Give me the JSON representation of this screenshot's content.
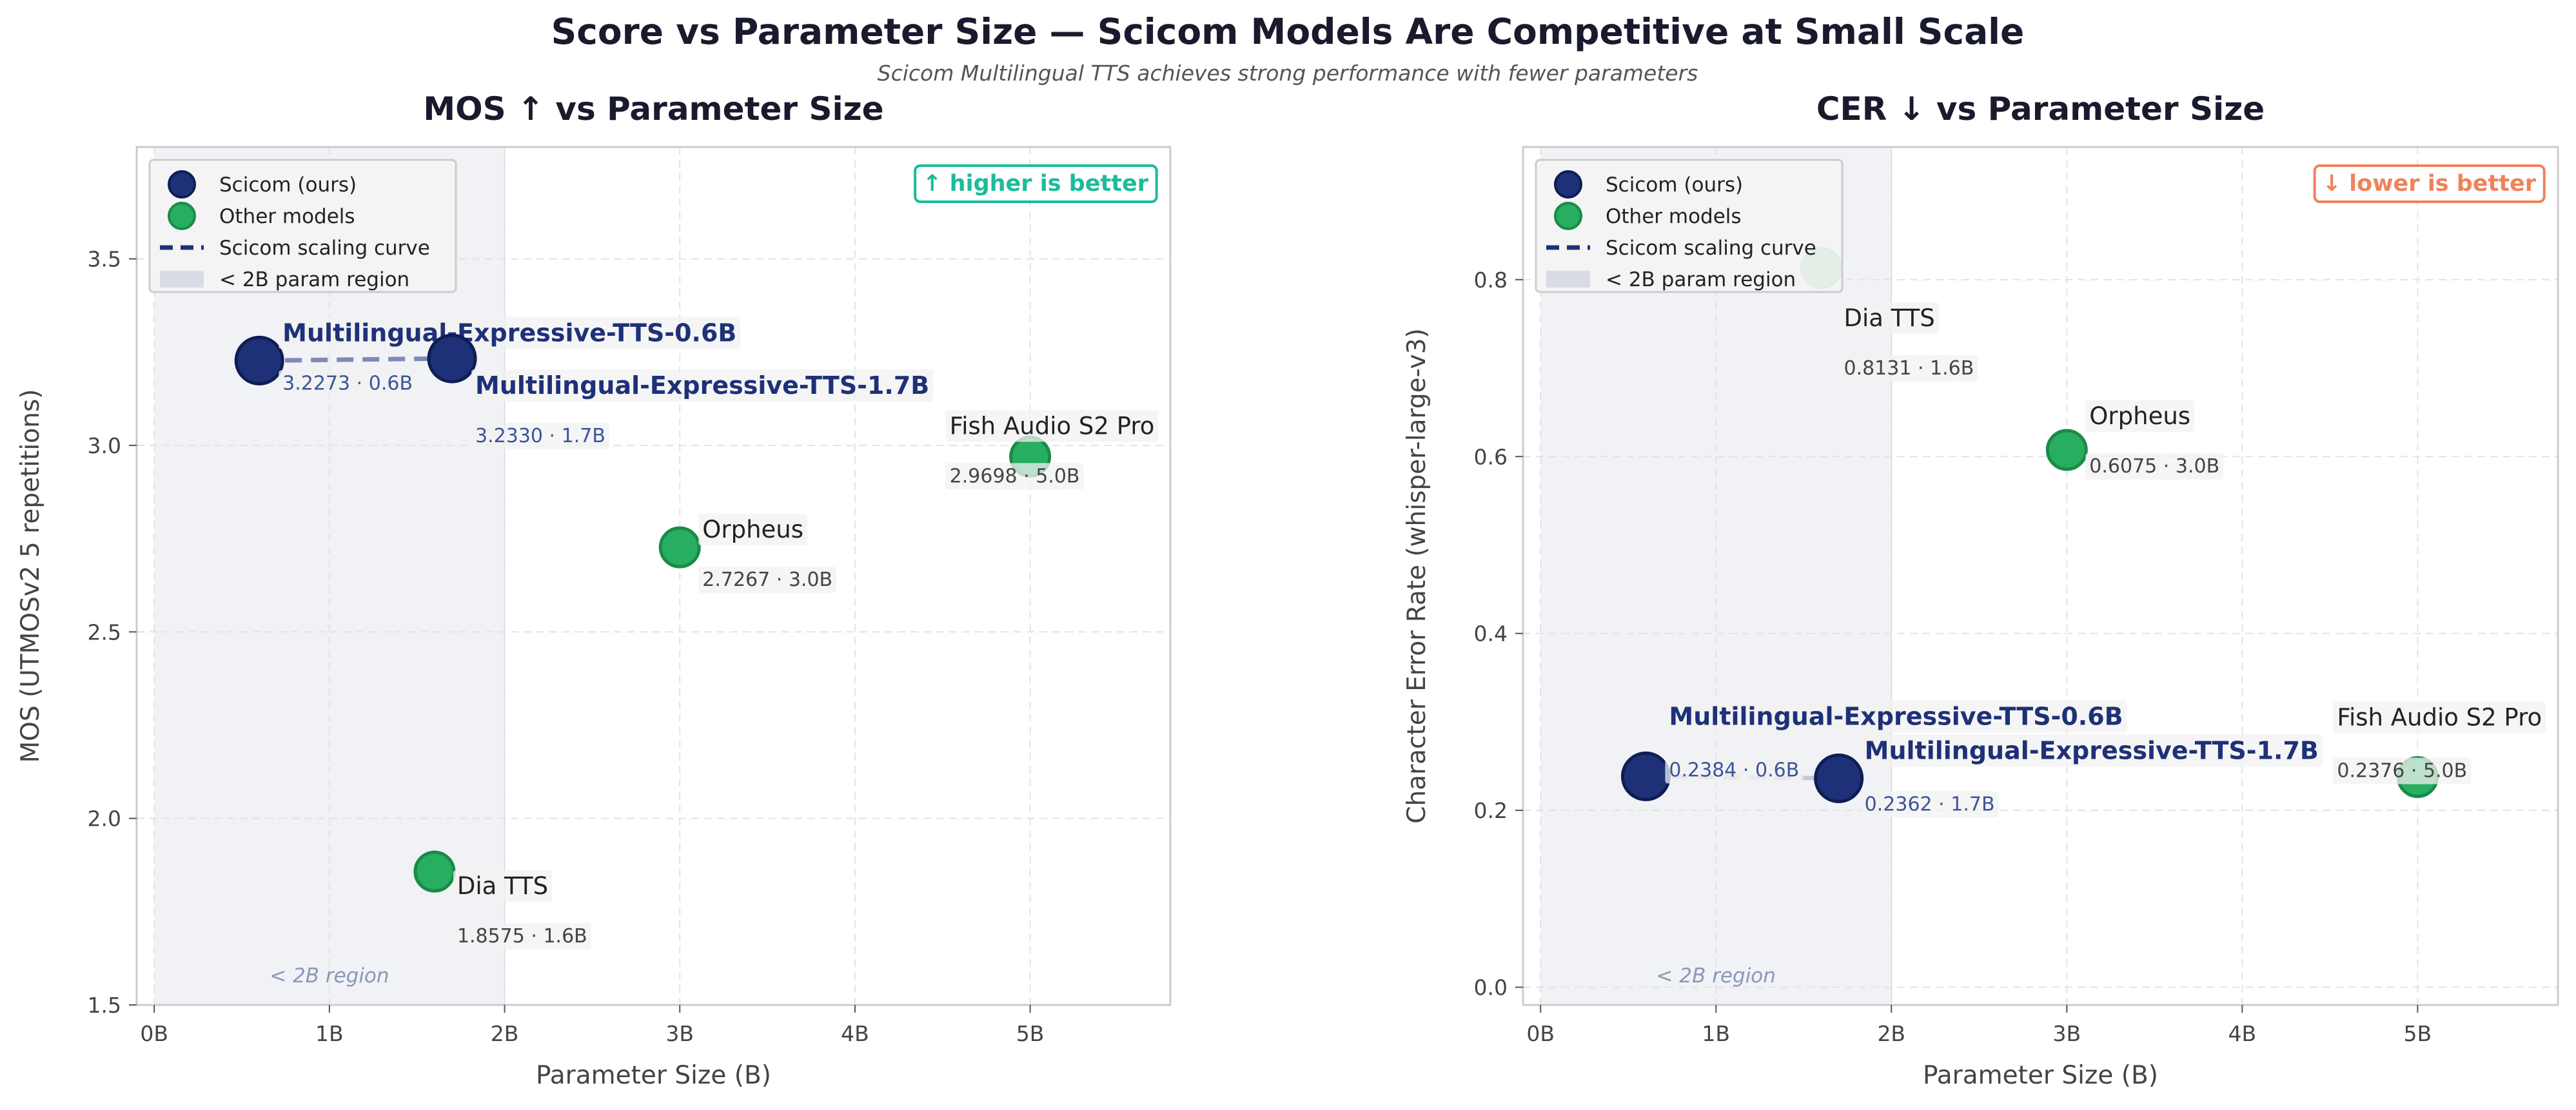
{
  "title": "Score vs Parameter Size  —  Scicom Models Are Competitive at Small Scale",
  "subtitle": "Scicom Multilingual TTS achieves strong performance with fewer parameters",
  "colors": {
    "ours": "#1e3178",
    "ours_edge": "#0f1d55",
    "other": "#27ae60",
    "other_edge": "#1a8a48",
    "curve": "#1e3178",
    "region": "#d9dce5",
    "higher_badge": "#1abc9c",
    "lower_badge": "#f0825a"
  },
  "legend": {
    "ours": "Scicom (ours)",
    "other": "Other models",
    "curve": "Scicom scaling curve",
    "region": "< 2B param region"
  },
  "chart_data": [
    {
      "type": "scatter",
      "title": "MOS ↑  vs Parameter Size",
      "xlabel": "Parameter Size (B)",
      "ylabel": "MOS (UTMOSv2 5 repetitions)",
      "xlim": [
        -0.1,
        5.8
      ],
      "ylim": [
        1.5,
        3.8
      ],
      "xticks": [
        0,
        1,
        2,
        3,
        4,
        5
      ],
      "xtick_labels": [
        "0B",
        "1B",
        "2B",
        "3B",
        "4B",
        "5B"
      ],
      "yticks": [
        1.5,
        2.0,
        2.5,
        3.0,
        3.5
      ],
      "ytick_labels": [
        "1.5",
        "2.0",
        "2.5",
        "3.0",
        "3.5"
      ],
      "badge": "↑ higher is better",
      "region_label": "< 2B region",
      "region_x": [
        0,
        2
      ],
      "points": [
        {
          "name": "Multilingual-Expressive-TTS-0.6B",
          "x": 0.6,
          "y": 3.2273,
          "group": "ours",
          "value_text": "3.2273  ·  0.6B"
        },
        {
          "name": "Multilingual-Expressive-TTS-1.7B",
          "x": 1.7,
          "y": 3.233,
          "group": "ours",
          "value_text": "3.2330  ·  1.7B"
        },
        {
          "name": "Dia TTS",
          "x": 1.6,
          "y": 1.8575,
          "group": "other",
          "value_text": "1.8575  ·  1.6B"
        },
        {
          "name": "Orpheus",
          "x": 3.0,
          "y": 2.7267,
          "group": "other",
          "value_text": "2.7267  ·  3.0B"
        },
        {
          "name": "Fish Audio S2 Pro",
          "x": 5.0,
          "y": 2.9698,
          "group": "other",
          "value_text": "2.9698  ·  5.0B"
        }
      ]
    },
    {
      "type": "scatter",
      "title": "CER ↓  vs Parameter Size",
      "xlabel": "Parameter Size (B)",
      "ylabel": "Character Error Rate (whisper-large-v3)",
      "xlim": [
        -0.1,
        5.8
      ],
      "ylim": [
        -0.02,
        0.95
      ],
      "xticks": [
        0,
        1,
        2,
        3,
        4,
        5
      ],
      "xtick_labels": [
        "0B",
        "1B",
        "2B",
        "3B",
        "4B",
        "5B"
      ],
      "yticks": [
        0.0,
        0.2,
        0.4,
        0.6,
        0.8
      ],
      "ytick_labels": [
        "0.0",
        "0.2",
        "0.4",
        "0.6",
        "0.8"
      ],
      "badge": "↓ lower is better",
      "region_label": "< 2B region",
      "region_x": [
        0,
        2
      ],
      "points": [
        {
          "name": "Multilingual-Expressive-TTS-0.6B",
          "x": 0.6,
          "y": 0.2384,
          "group": "ours",
          "value_text": "0.2384  ·  0.6B"
        },
        {
          "name": "Multilingual-Expressive-TTS-1.7B",
          "x": 1.7,
          "y": 0.2362,
          "group": "ours",
          "value_text": "0.2362  ·  1.7B"
        },
        {
          "name": "Dia TTS",
          "x": 1.6,
          "y": 0.8131,
          "group": "other",
          "value_text": "0.8131  ·  1.6B"
        },
        {
          "name": "Orpheus",
          "x": 3.0,
          "y": 0.6075,
          "group": "other",
          "value_text": "0.6075  ·  3.0B"
        },
        {
          "name": "Fish Audio S2 Pro",
          "x": 5.0,
          "y": 0.2376,
          "group": "other",
          "value_text": "0.2376  ·  5.0B"
        }
      ]
    }
  ]
}
